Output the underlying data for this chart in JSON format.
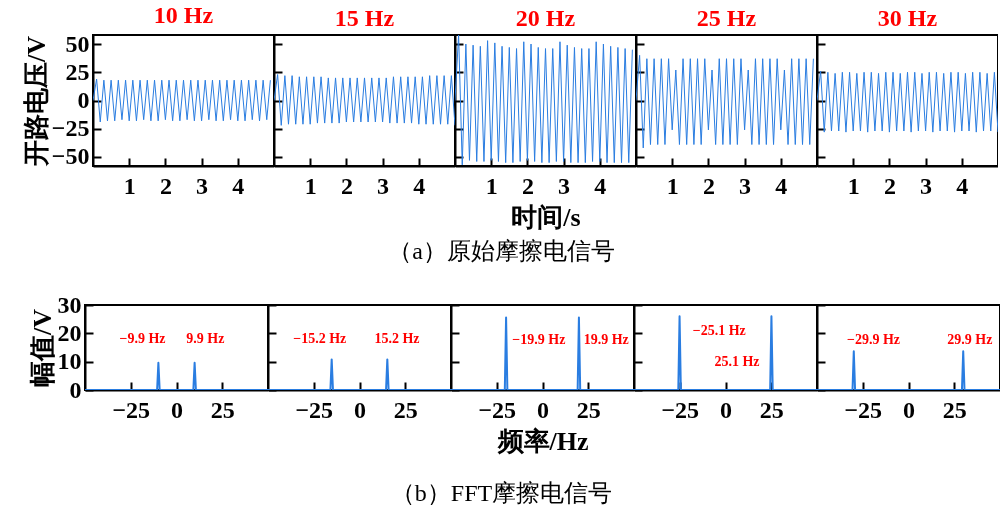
{
  "chart_data": [
    {
      "type": "line",
      "title": "10 Hz",
      "ylabel": "开路电压/V",
      "xlim": [
        0,
        5
      ],
      "ylim": [
        -58,
        58
      ],
      "xticks": [
        1,
        2,
        3,
        4
      ],
      "yticks": [
        -50,
        -25,
        0,
        25,
        50
      ],
      "x": [
        0,
        0.1,
        0.2,
        0.3,
        0.4,
        0.5,
        0.6,
        0.7,
        0.8,
        0.9,
        1,
        1.1,
        1.2,
        1.3,
        1.4,
        1.5,
        1.6,
        1.7,
        1.8,
        1.9,
        2,
        2.1,
        2.2,
        2.3,
        2.4,
        2.5,
        2.6,
        2.7,
        2.8,
        2.9,
        3,
        3.1,
        3.2,
        3.3,
        3.4,
        3.5,
        3.6,
        3.7,
        3.8,
        3.9,
        4,
        4.1,
        4.2,
        4.3,
        4.4,
        4.5,
        4.6,
        4.7,
        4.8,
        4.9
      ],
      "series": [
        {
          "color": "#2a7de1",
          "values": [
            0,
            19,
            -19,
            18,
            -18,
            18,
            -18,
            18,
            -17,
            18,
            -18,
            18,
            -18,
            18,
            -17,
            18,
            -18,
            18,
            -18,
            18,
            -17,
            18,
            -18,
            18,
            -18,
            18,
            -17,
            18,
            -18,
            18,
            -18,
            18,
            -17,
            18,
            -18,
            18,
            -18,
            18,
            -17,
            18,
            -18,
            18,
            -18,
            18,
            -17,
            18,
            -18,
            18,
            -17,
            18
          ]
        }
      ]
    },
    {
      "type": "line",
      "title": "15 Hz",
      "xlim": [
        0,
        5
      ],
      "ylim": [
        -58,
        58
      ],
      "xticks": [
        1,
        2,
        3,
        4
      ],
      "yticks": [
        -50,
        -25,
        0,
        25,
        50
      ],
      "tick_labels": "x",
      "x": [
        0,
        0.1,
        0.2,
        0.3,
        0.4,
        0.5,
        0.6,
        0.7,
        0.8,
        0.9,
        1,
        1.1,
        1.2,
        1.3,
        1.4,
        1.5,
        1.6,
        1.7,
        1.8,
        1.9,
        2,
        2.1,
        2.2,
        2.3,
        2.4,
        2.5,
        2.6,
        2.7,
        2.8,
        2.9,
        3,
        3.1,
        3.2,
        3.3,
        3.4,
        3.5,
        3.6,
        3.7,
        3.8,
        3.9,
        4,
        4.1,
        4.2,
        4.3,
        4.4,
        4.5,
        4.6,
        4.7,
        4.8,
        4.9,
        5
      ],
      "series": [
        {
          "color": "#2a7de1",
          "values": [
            0,
            23,
            -22,
            22,
            -21,
            22,
            -21,
            21,
            -21,
            21,
            -21,
            21,
            -20,
            21,
            -20,
            20,
            -20,
            20,
            -20,
            20,
            -19,
            20,
            -19,
            20,
            -19,
            20,
            -19,
            20,
            -19,
            20,
            -19,
            20,
            -20,
            21,
            -20,
            21,
            -20,
            21,
            -20,
            21,
            -21,
            21,
            -21,
            22,
            -21,
            22,
            -21,
            22,
            -21,
            22,
            -22
          ]
        }
      ]
    },
    {
      "type": "line",
      "title": "20 Hz",
      "xlabel": "时间/s",
      "annotations": [
        "（a）原始摩擦电信号"
      ],
      "xlim": [
        0,
        5
      ],
      "ylim": [
        -58,
        58
      ],
      "xticks": [
        1,
        2,
        3,
        4
      ],
      "yticks": [
        -50,
        -25,
        0,
        25,
        50
      ],
      "tick_labels": "x",
      "x": [
        0,
        0.1,
        0.2,
        0.3,
        0.4,
        0.5,
        0.6,
        0.7,
        0.8,
        0.9,
        1,
        1.1,
        1.2,
        1.3,
        1.4,
        1.5,
        1.6,
        1.7,
        1.8,
        1.9,
        2,
        2.1,
        2.2,
        2.3,
        2.4,
        2.5,
        2.6,
        2.7,
        2.8,
        2.9,
        3,
        3.1,
        3.2,
        3.3,
        3.4,
        3.5,
        3.6,
        3.7,
        3.8,
        3.9,
        4,
        4.1,
        4.2,
        4.3,
        4.4,
        4.5,
        4.6,
        4.7,
        4.8,
        4.9
      ],
      "series": [
        {
          "color": "#2a7de1",
          "values": [
            0,
            58,
            -57,
            50,
            -53,
            49,
            -54,
            48,
            -54,
            53,
            -53,
            51,
            -54,
            48,
            -55,
            47,
            -55,
            46,
            -54,
            52,
            -53,
            50,
            -54,
            47,
            -55,
            46,
            -55,
            46,
            -54,
            52,
            -54,
            49,
            -55,
            47,
            -55,
            46,
            -55,
            46,
            -54,
            52,
            -54,
            50,
            -55,
            48,
            -55,
            47,
            -55,
            46,
            -55,
            45
          ]
        }
      ]
    },
    {
      "type": "line",
      "title": "25 Hz",
      "xlim": [
        0,
        5
      ],
      "ylim": [
        -58,
        58
      ],
      "xticks": [
        1,
        2,
        3,
        4
      ],
      "yticks": [
        -50,
        -25,
        0,
        25,
        50
      ],
      "tick_labels": "x",
      "x": [
        0,
        0.1,
        0.2,
        0.3,
        0.4,
        0.5,
        0.6,
        0.7,
        0.8,
        0.9,
        1,
        1.1,
        1.2,
        1.3,
        1.4,
        1.5,
        1.6,
        1.7,
        1.8,
        1.9,
        2,
        2.1,
        2.2,
        2.3,
        2.4,
        2.5,
        2.6,
        2.7,
        2.8,
        2.9,
        3,
        3.1,
        3.2,
        3.3,
        3.4,
        3.5,
        3.6,
        3.7,
        3.8,
        3.9,
        4,
        4.1,
        4.2,
        4.3,
        4.4,
        4.5,
        4.6,
        4.7,
        4.8,
        4.9
      ],
      "series": [
        {
          "color": "#2a7de1",
          "values": [
            0,
            40,
            -42,
            37,
            -39,
            37,
            -39,
            37,
            -39,
            37,
            -26,
            27,
            -39,
            37,
            -39,
            37,
            -39,
            37,
            -39,
            37,
            -26,
            27,
            -39,
            37,
            -39,
            37,
            -39,
            37,
            -39,
            37,
            -26,
            27,
            -39,
            37,
            -39,
            37,
            -39,
            37,
            -39,
            37,
            -26,
            27,
            -39,
            37,
            -39,
            37,
            -39,
            37,
            -39,
            37
          ]
        }
      ]
    },
    {
      "type": "line",
      "title": "30 Hz",
      "xlim": [
        0,
        5
      ],
      "ylim": [
        -58,
        58
      ],
      "xticks": [
        1,
        2,
        3,
        4
      ],
      "yticks": [
        -50,
        -25,
        0,
        25,
        50
      ],
      "tick_labels": "x",
      "x": [
        0,
        0.1,
        0.2,
        0.3,
        0.4,
        0.5,
        0.6,
        0.7,
        0.8,
        0.9,
        1,
        1.1,
        1.2,
        1.3,
        1.4,
        1.5,
        1.6,
        1.7,
        1.8,
        1.9,
        2,
        2.1,
        2.2,
        2.3,
        2.4,
        2.5,
        2.6,
        2.7,
        2.8,
        2.9,
        3,
        3.1,
        3.2,
        3.3,
        3.4,
        3.5,
        3.6,
        3.7,
        3.8,
        3.9,
        4,
        4.1,
        4.2,
        4.3,
        4.4,
        4.5,
        4.6,
        4.7,
        4.8,
        4.9,
        5
      ],
      "series": [
        {
          "color": "#2a7de1",
          "values": [
            0,
            26,
            -28,
            25,
            -27,
            24,
            -27,
            25,
            -28,
            25,
            -27,
            24,
            -27,
            25,
            -28,
            25,
            -27,
            24,
            -27,
            25,
            -28,
            25,
            -27,
            24,
            -27,
            25,
            -28,
            25,
            -27,
            24,
            -27,
            25,
            -28,
            25,
            -27,
            24,
            -27,
            25,
            -28,
            25,
            -27,
            24,
            -27,
            25,
            -28,
            25,
            -27,
            24,
            -27,
            25,
            -28
          ]
        }
      ]
    },
    {
      "type": "line",
      "ylabel": "幅值/V",
      "xlim": [
        -50,
        50
      ],
      "ylim": [
        0,
        30
      ],
      "xticks": [
        -25,
        0,
        25
      ],
      "yticks": [
        0,
        10,
        20,
        30
      ],
      "annotations": [
        "−9.9 Hz",
        "9.9 Hz"
      ],
      "series": [
        {
          "color": "#2a7de1",
          "x": [
            -50,
            -10.6,
            -9.9,
            -9.2,
            9.2,
            9.9,
            10.6,
            50
          ],
          "values": [
            0,
            0,
            9.6,
            0,
            0,
            9.6,
            0,
            0
          ]
        }
      ]
    },
    {
      "type": "line",
      "xlim": [
        -50,
        50
      ],
      "ylim": [
        0,
        30
      ],
      "xticks": [
        -25,
        0,
        25
      ],
      "yticks": [
        0,
        10,
        20,
        30
      ],
      "tick_labels": "x",
      "annotations": [
        "−15.2 Hz",
        "15.2 Hz"
      ],
      "series": [
        {
          "color": "#2a7de1",
          "x": [
            -50,
            -15.9,
            -15.2,
            -14.5,
            14.5,
            15.2,
            15.9,
            50
          ],
          "values": [
            0,
            0,
            10.8,
            0,
            0,
            10.8,
            0,
            0
          ]
        }
      ]
    },
    {
      "type": "line",
      "xlabel": "频率/Hz",
      "xlim": [
        -50,
        50
      ],
      "ylim": [
        0,
        30
      ],
      "xticks": [
        -25,
        0,
        25
      ],
      "yticks": [
        0,
        10,
        20,
        30
      ],
      "tick_labels": "x",
      "annotations": [
        "−19.9 Hz",
        "19.9 Hz",
        "（b）FFT摩擦电信号"
      ],
      "series": [
        {
          "color": "#2a7de1",
          "x": [
            -50,
            -20.6,
            -19.9,
            -19.2,
            19.2,
            19.9,
            20.6,
            50
          ],
          "values": [
            0,
            0,
            25.6,
            0,
            0,
            25.6,
            0,
            0
          ]
        }
      ]
    },
    {
      "type": "line",
      "xlim": [
        -50,
        50
      ],
      "ylim": [
        0,
        30
      ],
      "xticks": [
        -25,
        0,
        25
      ],
      "yticks": [
        0,
        10,
        20,
        30
      ],
      "tick_labels": "x",
      "annotations": [
        "−25.1 Hz",
        "25.1 Hz"
      ],
      "series": [
        {
          "color": "#2a7de1",
          "x": [
            -50,
            -25.8,
            -25.1,
            -24.4,
            24.4,
            25.1,
            25.8,
            50
          ],
          "values": [
            0,
            0,
            26,
            0,
            0,
            26,
            0,
            0
          ]
        }
      ]
    },
    {
      "type": "line",
      "xlim": [
        -50,
        50
      ],
      "ylim": [
        0,
        30
      ],
      "xticks": [
        -25,
        0,
        25
      ],
      "yticks": [
        0,
        10,
        20,
        30
      ],
      "tick_labels": "x",
      "annotations": [
        "−29.9 Hz",
        "29.9 Hz"
      ],
      "series": [
        {
          "color": "#2a7de1",
          "x": [
            -50,
            -30.6,
            -29.9,
            -29.2,
            29.2,
            29.9,
            30.6,
            50
          ],
          "values": [
            0,
            0,
            13.7,
            0,
            0,
            13.7,
            0,
            0
          ]
        }
      ]
    }
  ]
}
